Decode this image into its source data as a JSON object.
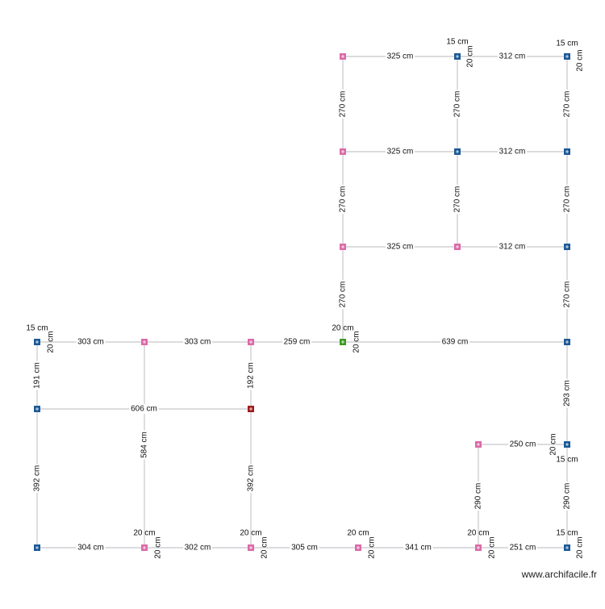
{
  "plan": {
    "walls": [
      "325 cm",
      "312 cm",
      "325 cm",
      "312 cm",
      "325 cm",
      "312 cm",
      "270 cm",
      "270 cm",
      "270 cm",
      "270 cm",
      "270 cm",
      "270 cm",
      "270 cm",
      "270 cm",
      "303 cm",
      "303 cm",
      "259 cm",
      "639 cm",
      "191 cm",
      "192 cm",
      "606 cm",
      "584 cm",
      "392 cm",
      "392 cm",
      "293 cm",
      "250 cm",
      "290 cm",
      "290 cm",
      "304 cm",
      "302 cm",
      "305 cm",
      "341 cm",
      "251 cm"
    ],
    "node_dimensions": [
      {
        "top": "15 cm",
        "side": "20 cm"
      },
      {
        "top": "15 cm",
        "side": "20 cm"
      },
      {
        "top": "15 cm",
        "side": "20 cm"
      },
      {
        "top": "20 cm",
        "side": "20 cm"
      },
      {
        "top": "15 cm",
        "side": "20 cm"
      },
      {
        "top": "20 cm",
        "side": "20 cm"
      },
      {
        "top": "20 cm",
        "side": "20 cm"
      },
      {
        "top": "20 cm",
        "side": "20 cm"
      },
      {
        "top": "20 cm",
        "side": "20 cm"
      },
      {
        "top": "15 cm",
        "side": "20 cm"
      }
    ]
  },
  "footer": {
    "watermark": "www.archifacile.fr"
  }
}
